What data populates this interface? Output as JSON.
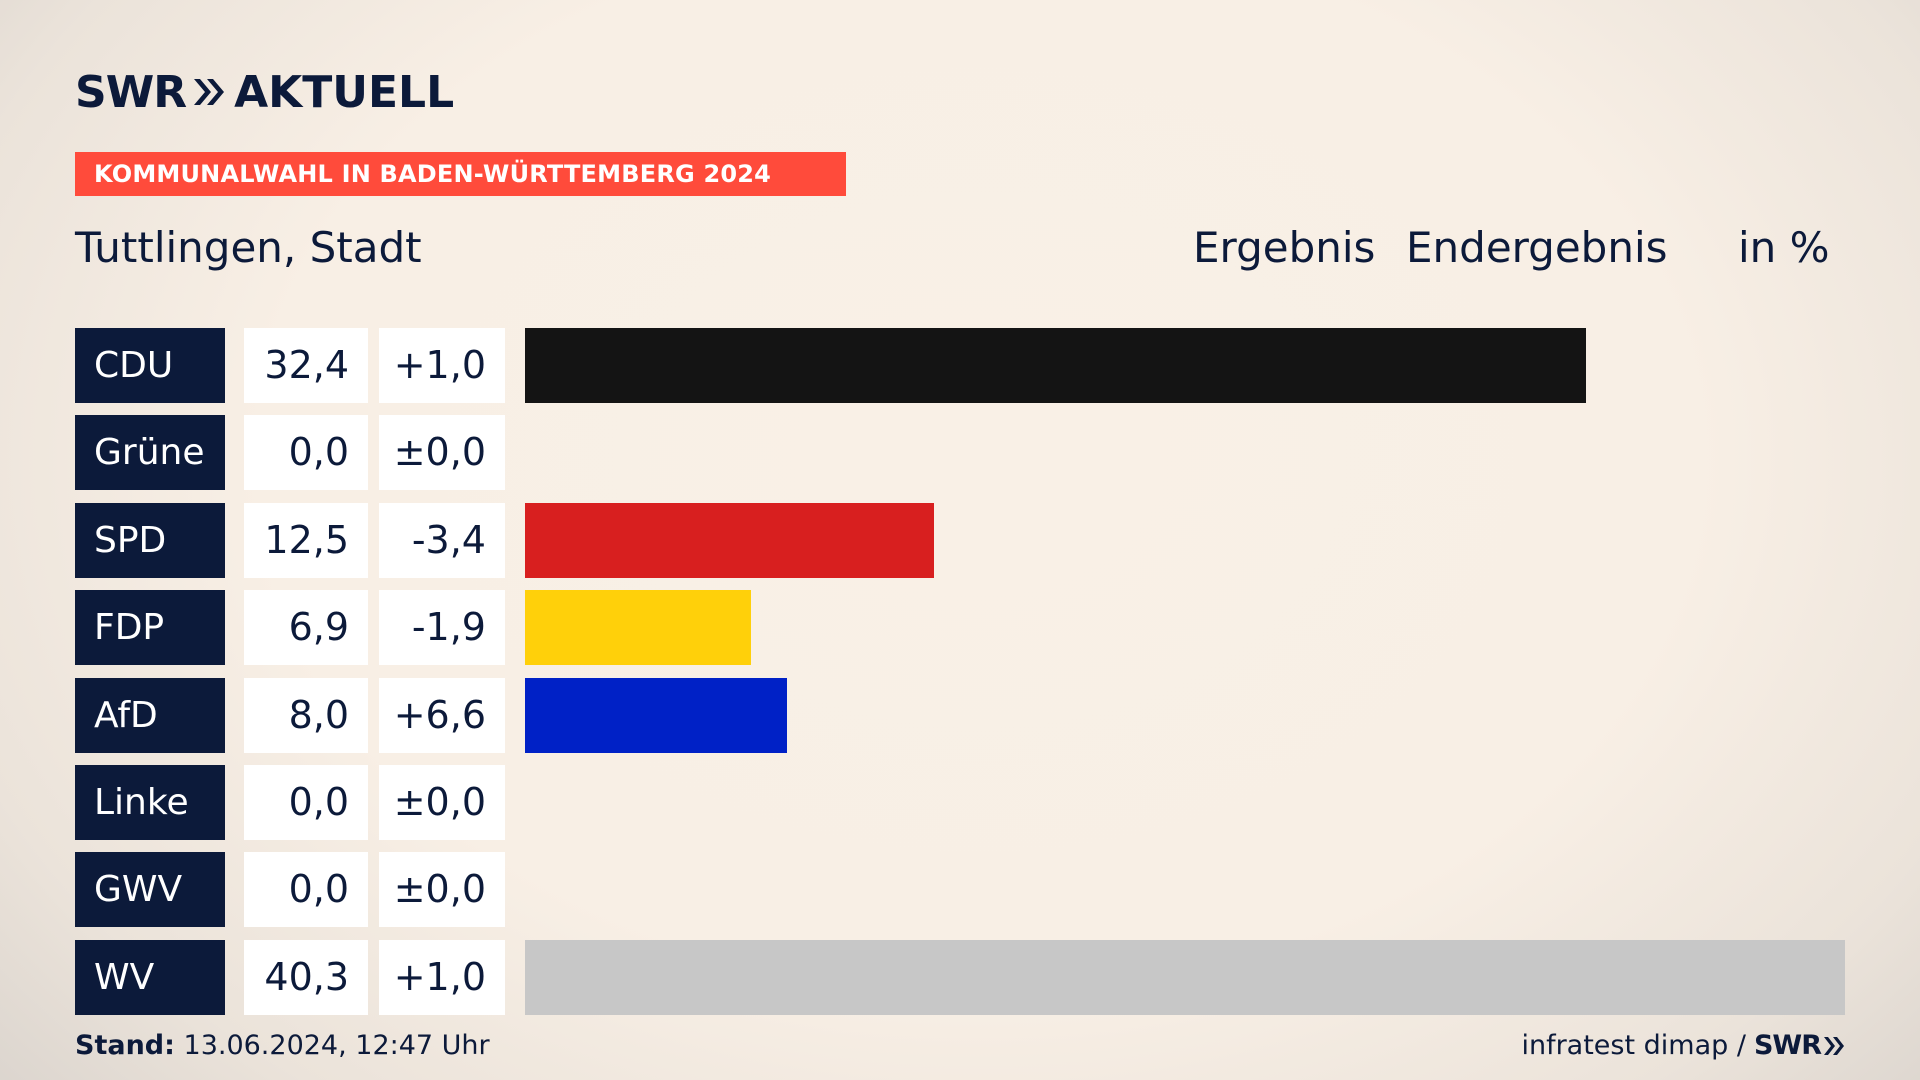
{
  "brand": {
    "logo_swr": "SWR",
    "logo_aktuell": "AKTUELL",
    "footer_logo": "SWR"
  },
  "banner": {
    "text": "KOMMUNALWAHL IN BADEN-WÜRTTEMBERG 2024",
    "color": "#ff4b3b"
  },
  "header": {
    "place": "Tuttlingen, Stadt",
    "result_label": "Ergebnis",
    "final_label": "Endergebnis",
    "unit_label": "in %"
  },
  "chart_data": {
    "type": "bar",
    "orientation": "horizontal",
    "title": "Tuttlingen, Stadt",
    "xlim": [
      0,
      40.3
    ],
    "rows": [
      {
        "party": "CDU",
        "value": 32.4,
        "value_label": "32,4",
        "change_label": "+1,0",
        "color": "#141414"
      },
      {
        "party": "Grüne",
        "value": 0.0,
        "value_label": "0,0",
        "change_label": "±0,0",
        "color": "#3aa84a"
      },
      {
        "party": "SPD",
        "value": 12.5,
        "value_label": "12,5",
        "change_label": "-3,4",
        "color": "#d81f1f"
      },
      {
        "party": "FDP",
        "value": 6.9,
        "value_label": "6,9",
        "change_label": "-1,9",
        "color": "#ffd00a"
      },
      {
        "party": "AfD",
        "value": 8.0,
        "value_label": "8,0",
        "change_label": "+6,6",
        "color": "#0021c6"
      },
      {
        "party": "Linke",
        "value": 0.0,
        "value_label": "0,0",
        "change_label": "±0,0",
        "color": "#be3075"
      },
      {
        "party": "GWV",
        "value": 0.0,
        "value_label": "0,0",
        "change_label": "±0,0",
        "color": "#a0a0a0"
      },
      {
        "party": "WV",
        "value": 40.3,
        "value_label": "40,3",
        "change_label": "+1,0",
        "color": "#c7c7c7"
      }
    ]
  },
  "footer": {
    "stand_label": "Stand:",
    "stand_value": "13.06.2024, 12:47 Uhr",
    "source": "infratest dimap /"
  }
}
